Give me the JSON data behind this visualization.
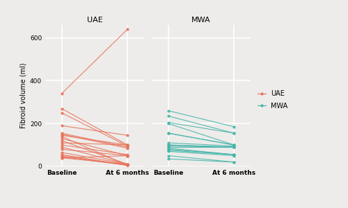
{
  "uae_baseline": [
    340,
    270,
    250,
    190,
    155,
    150,
    145,
    140,
    130,
    120,
    110,
    100,
    90,
    80,
    65,
    55,
    50,
    45,
    40,
    40
  ],
  "uae_6months": [
    640,
    100,
    95,
    145,
    90,
    85,
    100,
    5,
    50,
    10,
    100,
    55,
    10,
    50,
    10,
    5,
    5,
    5,
    10,
    50
  ],
  "mwa_baseline": [
    260,
    235,
    205,
    200,
    155,
    155,
    110,
    100,
    100,
    95,
    90,
    85,
    80,
    75,
    70,
    50,
    35
  ],
  "mwa_6months": [
    185,
    155,
    155,
    100,
    100,
    100,
    95,
    90,
    90,
    90,
    90,
    55,
    55,
    55,
    50,
    20,
    20
  ],
  "uae_color": "#E8735A",
  "mwa_color": "#45B5AA",
  "bg_color": "#EDECEA",
  "grid_color": "#FFFFFF",
  "ylabel": "Fibroid volume (ml)",
  "uae_title": "UAE",
  "mwa_title": "MWA",
  "x_labels": [
    "Baseline",
    "At 6 months"
  ],
  "ylim": [
    0,
    660
  ],
  "yticks": [
    0,
    200,
    400,
    600
  ],
  "legend_labels": [
    "UAE",
    "MWA"
  ],
  "marker_size": 3,
  "line_width": 0.8,
  "title_fontsize": 8,
  "tick_fontsize": 6.5,
  "ylabel_fontsize": 7,
  "legend_fontsize": 7
}
